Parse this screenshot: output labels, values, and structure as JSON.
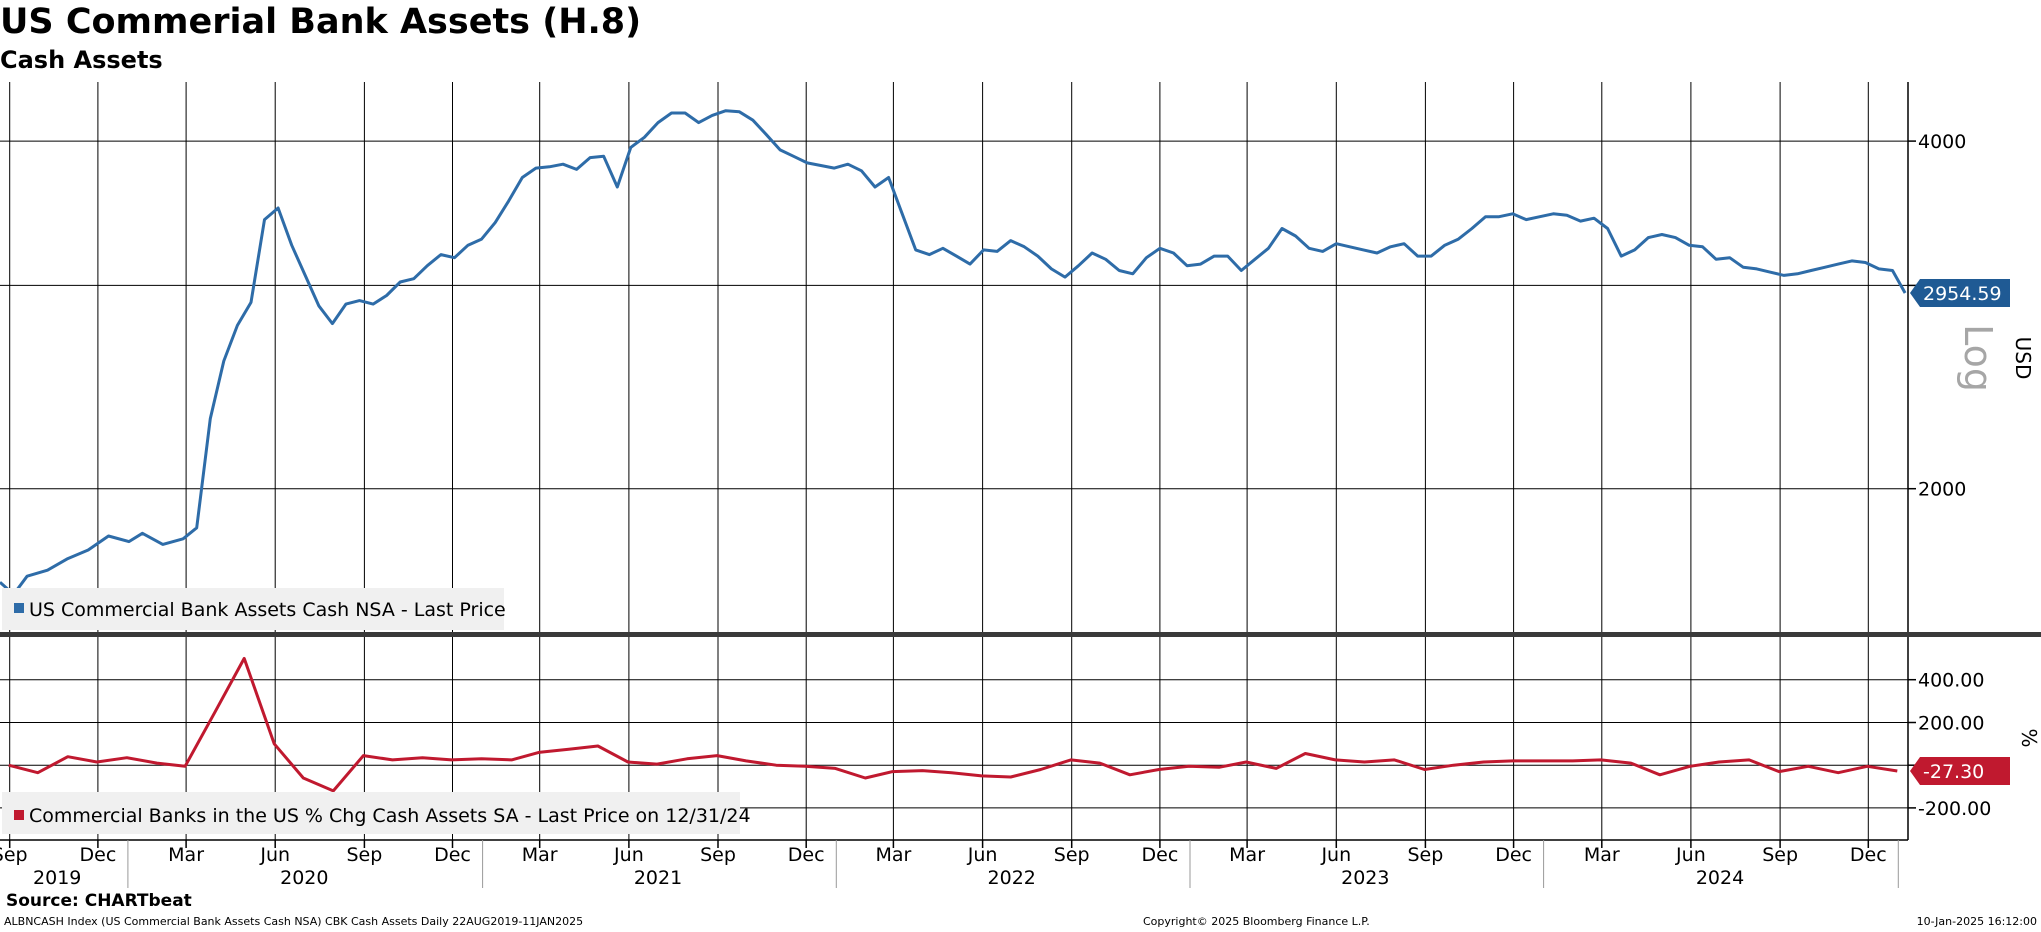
{
  "title": "US Commerial Bank Assets (H.8)",
  "subtitle": "Cash Assets",
  "source": "Source: CHARTbeat",
  "footer": {
    "left": "ALBNCASH Index (US Commercial Bank Assets Cash NSA) CBK Cash Assets  Daily 22AUG2019-11JAN2025",
    "center": "Copyright© 2025 Bloomberg Finance L.P.",
    "right": "10-Jan-2025 16:12:00"
  },
  "colors": {
    "upper_series": "#2e6ca8",
    "lower_series": "#c0192f"
  },
  "chart_data": [
    {
      "type": "line",
      "scale": "log",
      "ylim": [
        1500,
        4500
      ],
      "yticks": [
        2000,
        3000,
        4000
      ],
      "ytick_labels": [
        "2000",
        "",
        "4000"
      ],
      "ylabel": "USD",
      "scale_label": "Log",
      "legend": "US Commercial Bank Assets Cash NSA - Last Price",
      "legend_position": "bottom-left",
      "last_value": 2954.59,
      "last_value_label": "2954.59",
      "grid": true,
      "series": [
        {
          "x": [
            "2019-08-22",
            "2019-09-05",
            "2019-09-19",
            "2019-10-10",
            "2019-10-31",
            "2019-11-21",
            "2019-12-12",
            "2020-01-02",
            "2020-01-16",
            "2020-02-06",
            "2020-02-27",
            "2020-03-12",
            "2020-03-26",
            "2020-04-09",
            "2020-04-23",
            "2020-05-07",
            "2020-05-21",
            "2020-06-04",
            "2020-06-18",
            "2020-07-02",
            "2020-07-16",
            "2020-07-30",
            "2020-08-13",
            "2020-08-27",
            "2020-09-10",
            "2020-09-24",
            "2020-10-08",
            "2020-10-22",
            "2020-11-05",
            "2020-11-19",
            "2020-12-03",
            "2020-12-17",
            "2020-12-31",
            "2021-01-14",
            "2021-01-28",
            "2021-02-11",
            "2021-02-25",
            "2021-03-11",
            "2021-03-25",
            "2021-04-08",
            "2021-04-22",
            "2021-05-06",
            "2021-05-20",
            "2021-06-03",
            "2021-06-17",
            "2021-07-01",
            "2021-07-15",
            "2021-07-29",
            "2021-08-12",
            "2021-08-26",
            "2021-09-09",
            "2021-09-23",
            "2021-10-07",
            "2021-10-21",
            "2021-11-04",
            "2021-11-18",
            "2021-12-02",
            "2021-12-16",
            "2021-12-30",
            "2022-01-13",
            "2022-01-27",
            "2022-02-10",
            "2022-02-24",
            "2022-03-10",
            "2022-03-24",
            "2022-04-07",
            "2022-04-21",
            "2022-05-05",
            "2022-05-19",
            "2022-06-02",
            "2022-06-16",
            "2022-06-30",
            "2022-07-14",
            "2022-07-28",
            "2022-08-11",
            "2022-08-25",
            "2022-09-08",
            "2022-09-22",
            "2022-10-06",
            "2022-10-20",
            "2022-11-03",
            "2022-11-17",
            "2022-12-01",
            "2022-12-15",
            "2022-12-29",
            "2023-01-12",
            "2023-01-26",
            "2023-02-09",
            "2023-02-23",
            "2023-03-09",
            "2023-03-23",
            "2023-04-06",
            "2023-04-20",
            "2023-05-04",
            "2023-05-18",
            "2023-06-01",
            "2023-06-15",
            "2023-06-29",
            "2023-07-13",
            "2023-07-27",
            "2023-08-10",
            "2023-08-24",
            "2023-09-07",
            "2023-09-21",
            "2023-10-05",
            "2023-10-19",
            "2023-11-02",
            "2023-11-16",
            "2023-11-30",
            "2023-12-14",
            "2023-12-28",
            "2024-01-11",
            "2024-01-25",
            "2024-02-08",
            "2024-02-22",
            "2024-03-07",
            "2024-03-21",
            "2024-04-04",
            "2024-04-18",
            "2024-05-02",
            "2024-05-16",
            "2024-05-30",
            "2024-06-13",
            "2024-06-27",
            "2024-07-11",
            "2024-07-25",
            "2024-08-08",
            "2024-08-22",
            "2024-09-05",
            "2024-09-19",
            "2024-10-03",
            "2024-10-17",
            "2024-10-31",
            "2024-11-14",
            "2024-11-28",
            "2024-12-12",
            "2024-12-26",
            "2025-01-08"
          ],
          "values": [
            1660,
            1620,
            1680,
            1700,
            1740,
            1770,
            1820,
            1800,
            1830,
            1790,
            1810,
            1850,
            2300,
            2580,
            2770,
            2900,
            3420,
            3500,
            3250,
            3060,
            2880,
            2780,
            2890,
            2910,
            2890,
            2940,
            3020,
            3040,
            3120,
            3190,
            3170,
            3250,
            3290,
            3400,
            3550,
            3720,
            3790,
            3800,
            3820,
            3780,
            3870,
            3880,
            3650,
            3950,
            4030,
            4150,
            4230,
            4230,
            4150,
            4210,
            4250,
            4240,
            4170,
            4050,
            3930,
            3880,
            3830,
            3810,
            3790,
            3820,
            3770,
            3650,
            3720,
            3460,
            3220,
            3190,
            3230,
            3180,
            3130,
            3220,
            3210,
            3280,
            3240,
            3180,
            3100,
            3050,
            3120,
            3200,
            3160,
            3090,
            3070,
            3170,
            3230,
            3200,
            3120,
            3130,
            3180,
            3180,
            3090,
            3160,
            3230,
            3360,
            3310,
            3230,
            3210,
            3260,
            3240,
            3220,
            3200,
            3240,
            3260,
            3180,
            3180,
            3250,
            3290,
            3360,
            3440,
            3440,
            3460,
            3420,
            3440,
            3460,
            3450,
            3410,
            3430,
            3360,
            3180,
            3220,
            3300,
            3320,
            3300,
            3250,
            3240,
            3160,
            3170,
            3110,
            3100,
            3080,
            3060,
            3070,
            3090,
            3110,
            3130,
            3150,
            3140,
            3100,
            3090,
            2954.59
          ]
        }
      ]
    },
    {
      "type": "line",
      "ylim": [
        -350,
        600
      ],
      "yticks": [
        -200,
        0,
        200,
        400
      ],
      "ytick_labels": [
        "-200.00",
        "",
        "200.00",
        "400.00"
      ],
      "ylabel": "%",
      "legend": "Commercial Banks in the US % Chg Cash Assets SA - Last Price on 12/31/24",
      "legend_position": "bottom-left",
      "last_value": -27.3,
      "last_value_label": "-27.30",
      "grid": true,
      "series": [
        {
          "x": [
            "2019-08-31",
            "2019-09-30",
            "2019-10-31",
            "2019-11-30",
            "2019-12-31",
            "2020-01-31",
            "2020-02-29",
            "2020-03-31",
            "2020-04-30",
            "2020-05-31",
            "2020-06-30",
            "2020-07-31",
            "2020-08-31",
            "2020-09-30",
            "2020-10-31",
            "2020-11-30",
            "2020-12-31",
            "2021-01-31",
            "2021-02-28",
            "2021-03-31",
            "2021-04-30",
            "2021-05-31",
            "2021-06-30",
            "2021-07-31",
            "2021-08-31",
            "2021-09-30",
            "2021-10-31",
            "2021-11-30",
            "2021-12-31",
            "2022-01-31",
            "2022-02-28",
            "2022-03-31",
            "2022-04-30",
            "2022-05-31",
            "2022-06-30",
            "2022-07-31",
            "2022-08-31",
            "2022-09-30",
            "2022-10-31",
            "2022-11-30",
            "2022-12-31",
            "2023-01-31",
            "2023-02-28",
            "2023-03-31",
            "2023-04-30",
            "2023-05-31",
            "2023-06-30",
            "2023-07-31",
            "2023-08-31",
            "2023-09-30",
            "2023-10-31",
            "2023-11-30",
            "2023-12-31",
            "2024-01-31",
            "2024-02-29",
            "2024-03-31",
            "2024-04-30",
            "2024-05-31",
            "2024-06-30",
            "2024-07-31",
            "2024-08-31",
            "2024-09-30",
            "2024-10-31",
            "2024-11-30",
            "2024-12-31"
          ],
          "values": [
            0,
            -35,
            40,
            15,
            35,
            10,
            -5,
            250,
            500,
            100,
            -60,
            -120,
            45,
            25,
            35,
            25,
            30,
            25,
            60,
            75,
            90,
            15,
            5,
            30,
            45,
            20,
            0,
            -5,
            -15,
            -60,
            -30,
            -25,
            -35,
            -50,
            -55,
            -20,
            25,
            10,
            -45,
            -20,
            -5,
            -10,
            15,
            -15,
            55,
            25,
            15,
            25,
            -20,
            0,
            15,
            20,
            20,
            20,
            25,
            10,
            -45,
            -5,
            15,
            25,
            -30,
            -5,
            -35,
            -5,
            -27.3
          ]
        }
      ]
    }
  ],
  "x_axis": {
    "months": [
      "Sep",
      "Dec",
      "Mar",
      "Jun",
      "Sep",
      "Dec",
      "Mar",
      "Jun",
      "Sep",
      "Dec",
      "Mar",
      "Jun",
      "Sep",
      "Dec",
      "Mar",
      "Jun",
      "Sep",
      "Dec",
      "Mar",
      "Jun",
      "Sep",
      "Dec"
    ],
    "month_dates": [
      "2019-09-01",
      "2019-12-01",
      "2020-03-01",
      "2020-06-01",
      "2020-09-01",
      "2020-12-01",
      "2021-03-01",
      "2021-06-01",
      "2021-09-01",
      "2021-12-01",
      "2022-03-01",
      "2022-06-01",
      "2022-09-01",
      "2022-12-01",
      "2023-03-01",
      "2023-06-01",
      "2023-09-01",
      "2023-12-01",
      "2024-03-01",
      "2024-06-01",
      "2024-09-01",
      "2024-12-01"
    ],
    "years": [
      "2019",
      "2020",
      "2021",
      "2022",
      "2023",
      "2024"
    ],
    "year_dates": [
      "2019-10-20",
      "2020-07-01",
      "2021-07-01",
      "2022-07-01",
      "2023-07-01",
      "2024-07-01"
    ],
    "year_boundaries": [
      "2020-01-01",
      "2021-01-01",
      "2022-01-01",
      "2023-01-01",
      "2024-01-01",
      "2025-01-01"
    ],
    "range": [
      "2019-08-22",
      "2025-01-11"
    ]
  }
}
